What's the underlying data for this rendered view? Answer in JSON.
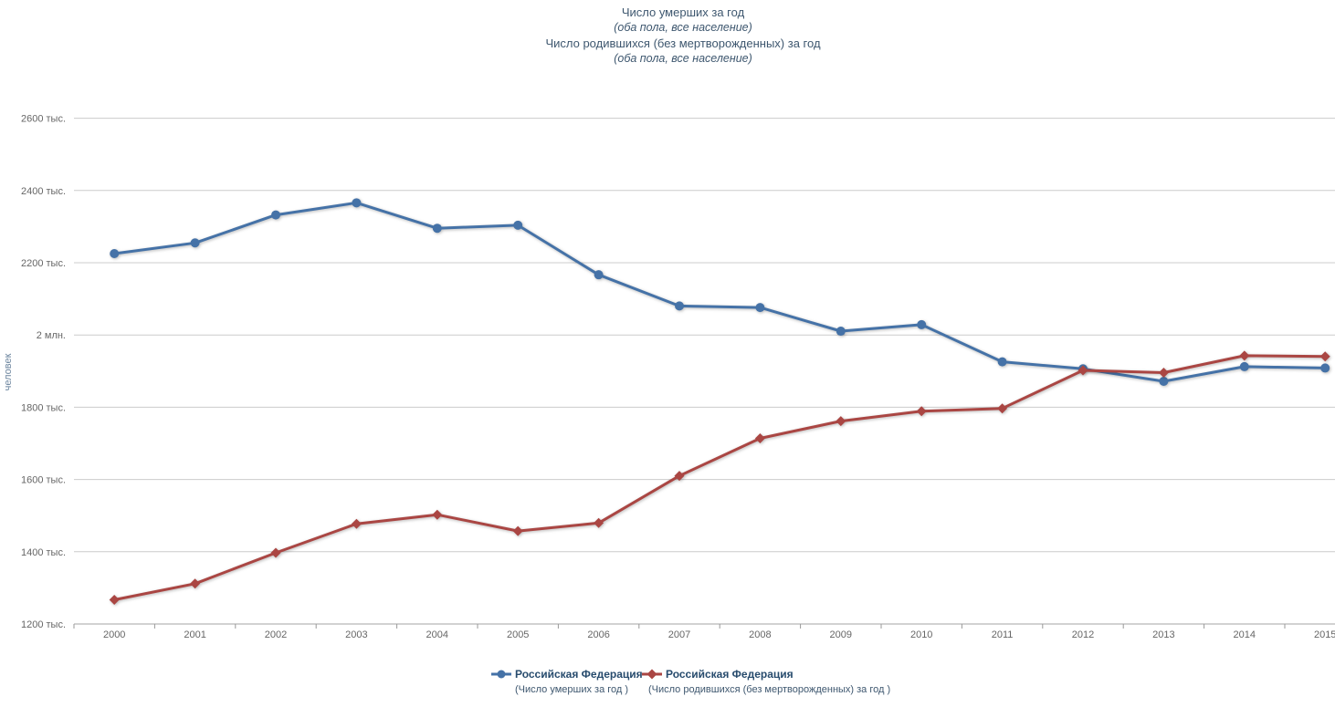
{
  "title": {
    "line1": "Число умерших за год",
    "line2": "(оба пола, все население)",
    "line3": "Число родившихся (без мертворожденных) за год",
    "line4": "(оба пола, все население)"
  },
  "legend": {
    "items": [
      {
        "name": "Российская Федерация",
        "sub": "(Число умерших за год )",
        "color": "#4572A7",
        "marker": "circle"
      },
      {
        "name": "Российская Федерация",
        "sub": "(Число родившихся (без мертворожденных) за год )",
        "color": "#AA4643",
        "marker": "diamond"
      }
    ]
  },
  "chart_data": {
    "type": "line",
    "title": "Число умерших за год (оба пола, все население); Число родившихся (без мертворожденных) за год (оба пола, все население)",
    "ylabel": "человек",
    "xlabel": "",
    "unit": "тыс. человек",
    "grid": true,
    "legend_position": "bottom",
    "ylim": [
      1200,
      2700
    ],
    "y_ticks": [
      {
        "value": 1200,
        "label": "1200 тыс."
      },
      {
        "value": 1400,
        "label": "1400 тыс."
      },
      {
        "value": 1600,
        "label": "1600 тыс."
      },
      {
        "value": 1800,
        "label": "1800 тыс."
      },
      {
        "value": 2000,
        "label": "2 млн."
      },
      {
        "value": 2200,
        "label": "2200 тыс."
      },
      {
        "value": 2400,
        "label": "2400 тыс."
      },
      {
        "value": 2600,
        "label": "2600 тыс."
      }
    ],
    "categories": [
      "2000",
      "2001",
      "2002",
      "2003",
      "2004",
      "2005",
      "2006",
      "2007",
      "2008",
      "2009",
      "2010",
      "2011",
      "2012",
      "2013",
      "2014",
      "2015"
    ],
    "series": [
      {
        "key": "deaths",
        "name": "Российская Федерация (Число умерших за год )",
        "color": "#4572A7",
        "marker": "circle",
        "values": [
          2225.3,
          2254.9,
          2332.3,
          2365.8,
          2295.4,
          2303.9,
          2166.7,
          2080.4,
          2076.0,
          2010.5,
          2028.5,
          1925.7,
          1906.3,
          1871.8,
          1912.3,
          1908.5
        ]
      },
      {
        "key": "births",
        "name": "Российская Федерация (Число родившихся (без мертворожденных) за год )",
        "color": "#AA4643",
        "marker": "diamond",
        "values": [
          1266.8,
          1311.6,
          1397.0,
          1477.3,
          1502.5,
          1457.4,
          1479.6,
          1610.1,
          1713.9,
          1761.7,
          1788.9,
          1796.6,
          1902.1,
          1895.8,
          1942.7,
          1940.6
        ]
      }
    ]
  }
}
